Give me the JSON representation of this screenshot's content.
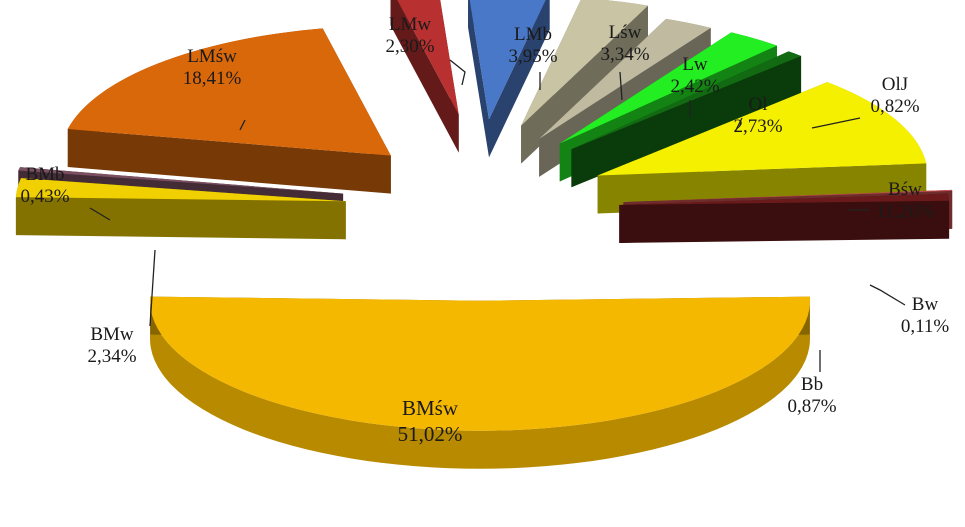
{
  "chart_data": {
    "type": "pie",
    "style": "3d-exploded",
    "title": "",
    "slices": [
      {
        "name": "BMśw",
        "label": "BMśw",
        "pct_text": "51,02%",
        "value": 51.02,
        "color": "#f5b800"
      },
      {
        "name": "BMw",
        "label": "BMw",
        "pct_text": "2,34%",
        "value": 2.34,
        "color": "#f0d000"
      },
      {
        "name": "BMb",
        "label": "BMb",
        "pct_text": "0,43%",
        "value": 0.43,
        "color": "#7a5060"
      },
      {
        "name": "LMśw",
        "label": "LMśw",
        "pct_text": "18,41%",
        "value": 18.41,
        "color": "#d9680a"
      },
      {
        "name": "LMw",
        "label": "LMw",
        "pct_text": "2,30%",
        "value": 2.3,
        "color": "#b83030"
      },
      {
        "name": "LMb",
        "label": "LMb",
        "pct_text": "3,95%",
        "value": 3.95,
        "color": "#4a78c8"
      },
      {
        "name": "Lśw",
        "label": "Lśw",
        "pct_text": "3,34%",
        "value": 3.34,
        "color": "#c9c4a4"
      },
      {
        "name": "Lw",
        "label": "Lw",
        "pct_text": "2,42%",
        "value": 2.42,
        "color": "#bfbaa0"
      },
      {
        "name": "Ol",
        "label": "Ol",
        "pct_text": "2,73%",
        "value": 2.73,
        "color": "#22ee22"
      },
      {
        "name": "OlJ",
        "label": "OlJ",
        "pct_text": "0,82%",
        "value": 0.82,
        "color": "#126b12"
      },
      {
        "name": "Bśw",
        "label": "Bśw",
        "pct_text": "11,26%",
        "value": 11.26,
        "color": "#f5f000"
      },
      {
        "name": "Bw",
        "label": "Bw",
        "pct_text": "0,11%",
        "value": 0.11,
        "color": "#c85050"
      },
      {
        "name": "Bb",
        "label": "Bb",
        "pct_text": "0,87%",
        "value": 0.87,
        "color": "#6a1a1a"
      }
    ]
  }
}
